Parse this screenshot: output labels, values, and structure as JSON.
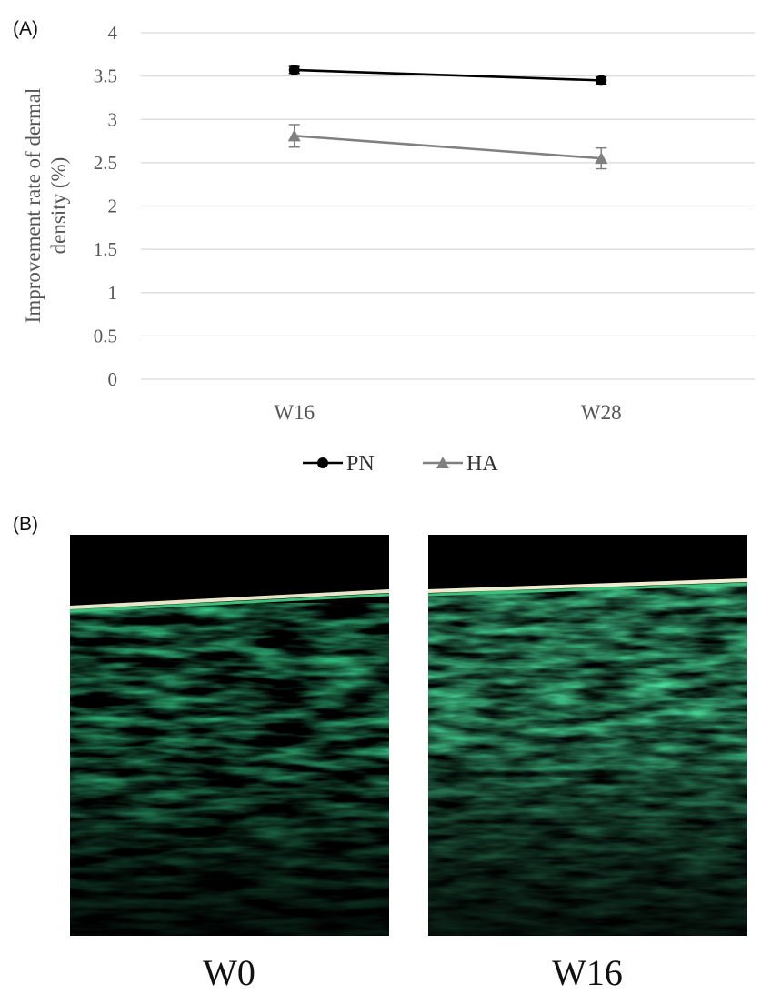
{
  "panel_a_label": "(A)",
  "panel_b_label": "(B)",
  "chart_data": {
    "type": "line",
    "ylabel_line1": "Improvement rate of dermal",
    "ylabel_line2": "density (%)",
    "xlabel": "",
    "categories": [
      "W16",
      "W28"
    ],
    "ylim": [
      0,
      4
    ],
    "yticks": [
      "0",
      "0.5",
      "1",
      "1.5",
      "2",
      "2.5",
      "3",
      "3.5",
      "4"
    ],
    "grid": true,
    "legend_position": "bottom-center",
    "series": [
      {
        "name": "PN",
        "values": [
          3.57,
          3.45
        ],
        "errors": [
          0.04,
          0.04
        ],
        "marker": "circle",
        "color": "#000000"
      },
      {
        "name": "HA",
        "values": [
          2.81,
          2.55
        ],
        "errors": [
          0.13,
          0.12
        ],
        "marker": "triangle",
        "color": "#808080"
      }
    ]
  },
  "images": {
    "left_caption": "W0",
    "right_caption": "W16"
  }
}
